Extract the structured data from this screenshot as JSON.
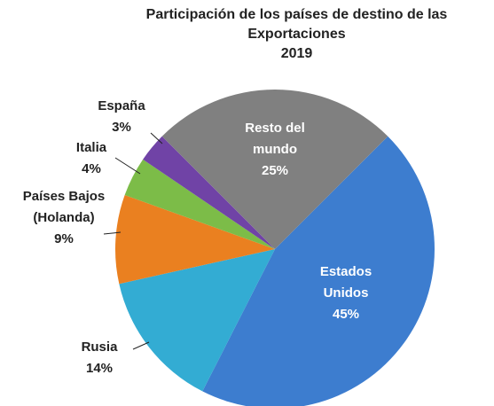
{
  "chart_data": {
    "type": "pie",
    "title": "Participación de los países de destino de las Exportaciones",
    "subtitle": "2019",
    "categories": [
      "Estados Unidos",
      "Rusia",
      "Países Bajos (Holanda)",
      "Italia",
      "España",
      "Resto del mundo"
    ],
    "values": [
      45,
      14,
      9,
      4,
      3,
      25
    ],
    "value_labels": [
      "45%",
      "14%",
      "9%",
      "4%",
      "3%",
      "25%"
    ],
    "colors": [
      "#3d7dcf",
      "#33acd3",
      "#ea8020",
      "#7cbc48",
      "#7043a6",
      "#808080"
    ],
    "start_angle": 45
  }
}
